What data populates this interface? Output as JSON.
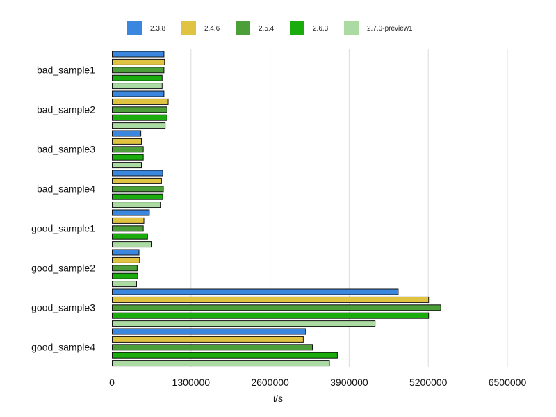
{
  "chart_data": {
    "type": "bar",
    "orientation": "horizontal",
    "title": "",
    "xlabel": "i/s",
    "ylabel": "",
    "xlim": [
      0,
      6500000
    ],
    "x_ticks": [
      0,
      1300000,
      2600000,
      3900000,
      5200000,
      6500000
    ],
    "tick_labels": [
      "0",
      "1300000",
      "2600000",
      "3900000",
      "5200000",
      "6500000"
    ],
    "grid": "vertical",
    "legend": "top",
    "categories": [
      "bad_sample1",
      "bad_sample2",
      "bad_sample3",
      "bad_sample4",
      "good_sample1",
      "good_sample2",
      "good_sample3",
      "good_sample4"
    ],
    "series": [
      {
        "name": "2.3.8",
        "color": "#3b87e0",
        "values": [
          850000,
          850000,
          470000,
          830000,
          610000,
          440000,
          4700000,
          3180000
        ]
      },
      {
        "name": "2.4.6",
        "color": "#e0c340",
        "values": [
          860000,
          920000,
          480000,
          810000,
          520000,
          450000,
          5200000,
          3140000
        ]
      },
      {
        "name": "2.5.4",
        "color": "#4c9f38",
        "values": [
          850000,
          900000,
          510000,
          840000,
          510000,
          410000,
          5400000,
          3290000
        ]
      },
      {
        "name": "2.6.3",
        "color": "#1aab0d",
        "values": [
          820000,
          900000,
          510000,
          830000,
          580000,
          420000,
          5200000,
          3700000
        ]
      },
      {
        "name": "2.7.0-preview1",
        "color": "#abdba3",
        "values": [
          820000,
          870000,
          480000,
          790000,
          640000,
          400000,
          4320000,
          3570000
        ]
      }
    ]
  }
}
